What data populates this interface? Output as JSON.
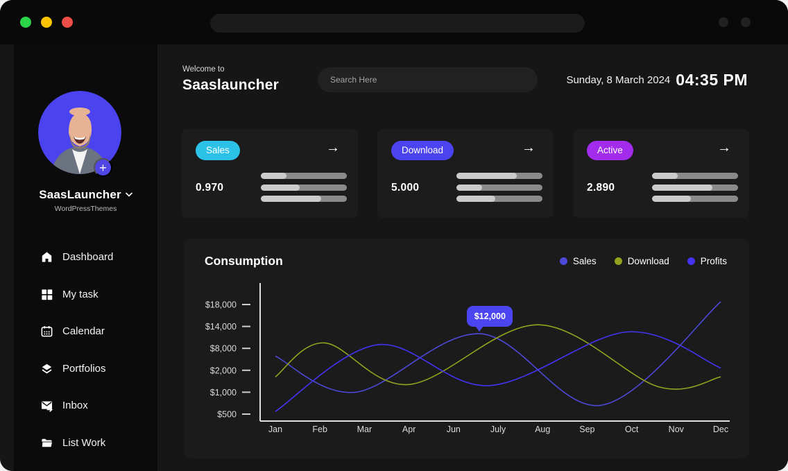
{
  "window": {
    "traffic_lights": {
      "green": "#2bd548",
      "yellow": "#fcc400",
      "red": "#ef4d47"
    }
  },
  "sidebar": {
    "profile": {
      "name": "SaasLauncher",
      "subtitle": "WordPressThemes",
      "avatar_bg": "#4b43f0",
      "plus_label": "+"
    },
    "items": [
      {
        "icon": "home-icon",
        "label": "Dashboard"
      },
      {
        "icon": "grid-icon",
        "label": "My task"
      },
      {
        "icon": "calendar-icon",
        "label": "Calendar"
      },
      {
        "icon": "layers-icon",
        "label": "Portfolios"
      },
      {
        "icon": "inbox-icon",
        "label": "Inbox"
      },
      {
        "icon": "folder-icon",
        "label": "List Work"
      }
    ]
  },
  "header": {
    "welcome": "Welcome to",
    "brand": "Saaslauncher",
    "search_placeholder": "Search Here",
    "date": "Sunday, 8 March 2024",
    "time": "04:35 PM"
  },
  "misc": {
    "arrow": "→"
  },
  "stat_cards": [
    {
      "label": "Sales",
      "pill_color": "#2cc2e8",
      "value": "0.970",
      "bars_fill_pct": [
        30,
        45,
        70
      ]
    },
    {
      "label": "Download",
      "pill_color": "#4a43ef",
      "value": "5.000",
      "bars_fill_pct": [
        70,
        30,
        45
      ]
    },
    {
      "label": "Active",
      "pill_color": "#a32bec",
      "value": "2.890",
      "bars_fill_pct": [
        30,
        70,
        45
      ]
    }
  ],
  "chart_data": {
    "type": "line",
    "title": "Consumption",
    "legend_position": "top-right",
    "grid": false,
    "x_labels": [
      "Jan",
      "Feb",
      "Mar",
      "Apr",
      "Jun",
      "July",
      "Aug",
      "Sep",
      "Oct",
      "Nov",
      "Dec"
    ],
    "y_tick_labels": [
      "$18,000",
      "$14,000",
      "$8,000",
      "$2,000",
      "$1,000",
      "$500"
    ],
    "y_tick_values": [
      18000,
      14000,
      8000,
      2000,
      1000,
      500
    ],
    "y_scale": "nonlinear-even-ticks",
    "series": [
      {
        "name": "Sales",
        "color": "#4d49d8",
        "points": [
          {
            "x": 0,
            "v": 5900
          },
          {
            "x": 1.8,
            "v": 1000
          },
          {
            "x": 4.6,
            "v": 12000
          },
          {
            "x": 7.3,
            "v": 700
          },
          {
            "x": 10,
            "v": 18500
          }
        ]
      },
      {
        "name": "Download",
        "color": "#94a31f",
        "points": [
          {
            "x": 0,
            "v": 1700
          },
          {
            "x": 1.1,
            "v": 9500
          },
          {
            "x": 3.0,
            "v": 1350
          },
          {
            "x": 5.9,
            "v": 14300
          },
          {
            "x": 8.6,
            "v": 1250
          },
          {
            "x": 10,
            "v": 1700
          }
        ]
      },
      {
        "name": "Profits",
        "color": "#4433f2",
        "points": [
          {
            "x": 0,
            "v": 560
          },
          {
            "x": 2.3,
            "v": 9000
          },
          {
            "x": 4.8,
            "v": 1300
          },
          {
            "x": 7.9,
            "v": 12500
          },
          {
            "x": 10,
            "v": 2600
          }
        ]
      }
    ],
    "tooltip": {
      "text": "$12,000",
      "series": "Sales",
      "x": 4.6,
      "value": 12000,
      "color": "#4b45f2"
    }
  }
}
